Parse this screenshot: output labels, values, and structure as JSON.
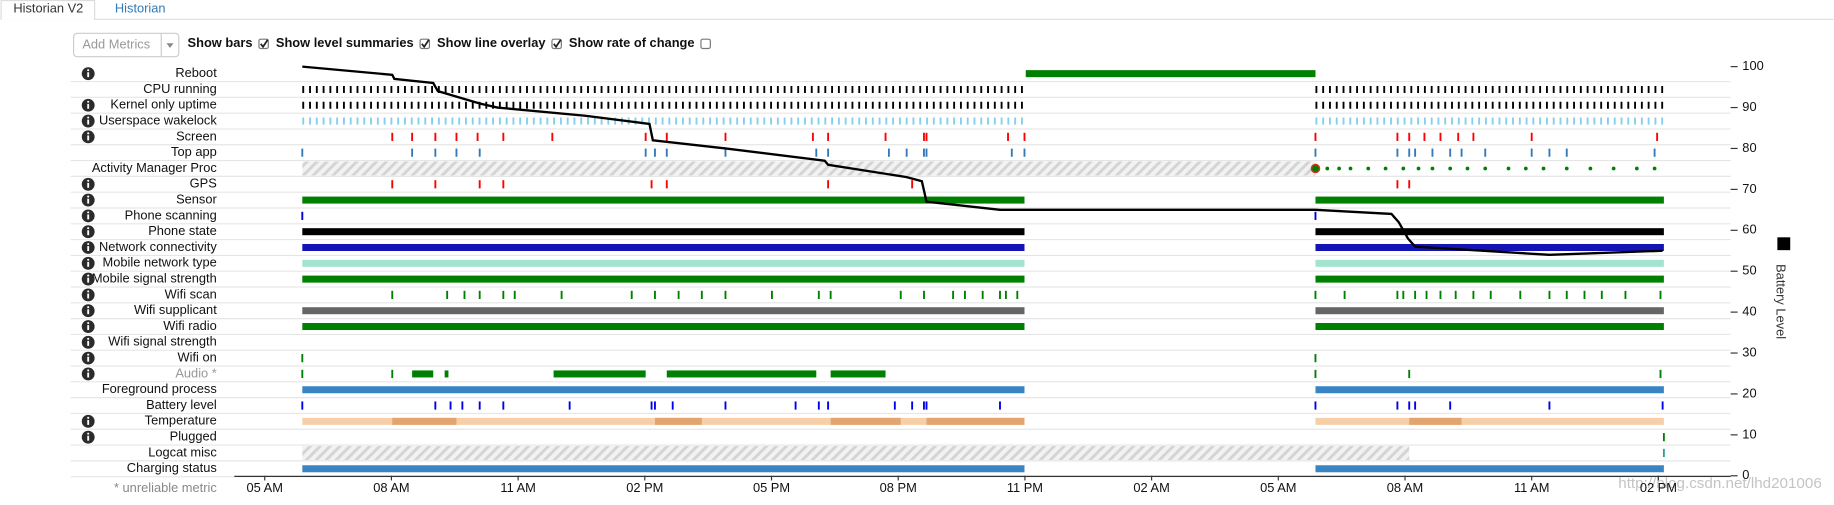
{
  "tabs": [
    {
      "label": "Historian V2",
      "active": true
    },
    {
      "label": "Historian",
      "active": false
    }
  ],
  "controls": {
    "add_metrics": "Add Metrics",
    "checkboxes": [
      {
        "label": "Show bars",
        "checked": true
      },
      {
        "label": "Show level summaries",
        "checked": true
      },
      {
        "label": "Show line overlay",
        "checked": true
      },
      {
        "label": "Show rate of change",
        "checked": false
      }
    ]
  },
  "footnote": "* unreliable metric",
  "watermark": "http://blog.csdn.net/lhd201006",
  "chart_data": {
    "type": "timeline",
    "xlim": [
      4.28,
      39.71
    ],
    "xticks": [
      {
        "value": 5,
        "label": "05 AM"
      },
      {
        "value": 8,
        "label": "08 AM"
      },
      {
        "value": 11,
        "label": "11 AM"
      },
      {
        "value": 14,
        "label": "02 PM"
      },
      {
        "value": 17,
        "label": "05 PM"
      },
      {
        "value": 20,
        "label": "08 PM"
      },
      {
        "value": 23,
        "label": "11 PM"
      },
      {
        "value": 26,
        "label": "02 AM"
      },
      {
        "value": 29,
        "label": "05 AM"
      },
      {
        "value": 32,
        "label": "08 AM"
      },
      {
        "value": 35,
        "label": "11 AM"
      },
      {
        "value": 38,
        "label": "02 PM"
      }
    ],
    "y2lim": [
      0,
      100
    ],
    "y2ticks": [
      0,
      10,
      20,
      30,
      40,
      50,
      60,
      70,
      80,
      90,
      100
    ],
    "y2label": "Battery Level",
    "series": [
      {
        "color": "#000000",
        "axis": "y2",
        "x": [
          5.89,
          8.02,
          8.07,
          8.99,
          9.1,
          10.09,
          10.51,
          12.59,
          14.11,
          14.19,
          15.91,
          18.26,
          18.34,
          20.2,
          20.56,
          20.67,
          22.41,
          29.88,
          31.68,
          31.85,
          32.07,
          32.24,
          35.42,
          38.1
        ],
        "values": [
          100,
          98,
          97,
          96,
          94,
          91,
          90,
          88,
          86,
          82,
          80,
          77,
          76,
          73,
          72,
          67,
          65,
          65,
          64,
          62,
          58,
          56,
          54,
          55
        ]
      }
    ],
    "rows": [
      {
        "name": "Reboot",
        "info": true,
        "color": "#008000",
        "segments": [
          [
            23.02,
            29.88
          ]
        ]
      },
      {
        "name": "CPU running",
        "info": false,
        "color": "#000000",
        "style": "dense",
        "segments": [
          [
            5.89,
            22.99
          ],
          [
            29.88,
            38.13
          ]
        ]
      },
      {
        "name": "Kernel only uptime",
        "info": true,
        "color": "#000000",
        "style": "dense",
        "segments": [
          [
            5.89,
            22.99
          ],
          [
            29.88,
            38.13
          ]
        ]
      },
      {
        "name": "Userspace wakelock",
        "info": true,
        "color": "#87ceeb",
        "style": "dense",
        "segments": [
          [
            5.89,
            22.99
          ],
          [
            29.88,
            38.13
          ]
        ]
      },
      {
        "name": "Screen",
        "info": true,
        "color": "#ff0000",
        "events": [
          8.02,
          8.49,
          9.04,
          9.54,
          10.04,
          10.65,
          11.81,
          14.02,
          14.52,
          15.91,
          17.98,
          18.34,
          19.7,
          20.61,
          20.67,
          22.6,
          22.99,
          29.88,
          31.82,
          32.1,
          32.46,
          32.84,
          33.26,
          33.62,
          35.0,
          37.97
        ]
      },
      {
        "name": "Top app",
        "info": false,
        "color": "#337ab7",
        "events": [
          5.89,
          8.49,
          9.04,
          9.54,
          10.09,
          14.02,
          14.24,
          14.52,
          15.91,
          18.06,
          18.34,
          19.78,
          20.2,
          20.61,
          20.67,
          22.69,
          22.99,
          29.88,
          31.82,
          32.1,
          32.24,
          32.65,
          33.07,
          33.34,
          33.9,
          35.0,
          35.42,
          35.83,
          37.91
        ]
      },
      {
        "name": "Activity Manager Proc",
        "info": false,
        "color": "#008000",
        "style": "dots",
        "hatched": [
          [
            5.89,
            29.88
          ]
        ],
        "events": [
          29.88,
          30.16,
          30.44,
          30.71,
          31.13,
          31.54,
          31.96,
          32.32,
          32.65,
          33.07,
          33.48,
          33.9,
          34.45,
          34.86,
          35.28,
          35.83,
          36.39,
          36.94,
          37.49,
          37.91
        ]
      },
      {
        "name": "GPS",
        "info": true,
        "color": "#ff0000",
        "events": [
          8.02,
          9.04,
          10.09,
          10.65,
          14.16,
          14.52,
          18.34,
          20.33,
          31.82,
          32.1
        ]
      },
      {
        "name": "Sensor",
        "info": true,
        "color": "#008000",
        "segments": [
          [
            5.89,
            22.99
          ],
          [
            29.88,
            38.13
          ]
        ]
      },
      {
        "name": "Phone scanning",
        "info": true,
        "color": "#0000cc",
        "events": [
          5.89,
          29.88
        ]
      },
      {
        "name": "Phone state",
        "info": true,
        "color": "#000000",
        "segments": [
          [
            5.89,
            22.99
          ],
          [
            29.88,
            38.13
          ]
        ]
      },
      {
        "name": "Network connectivity",
        "info": true,
        "color": "#1414b4",
        "segments": [
          [
            5.89,
            22.99
          ],
          [
            29.88,
            38.13
          ]
        ]
      },
      {
        "name": "Mobile network type",
        "info": true,
        "color": "#a3e4d0",
        "segments": [
          [
            5.89,
            22.99
          ],
          [
            29.88,
            38.13
          ]
        ]
      },
      {
        "name": "Mobile signal strength",
        "info": true,
        "color": "#008000",
        "segments": [
          [
            5.89,
            22.99
          ],
          [
            29.88,
            38.13
          ]
        ]
      },
      {
        "name": "Wifi scan",
        "info": true,
        "color": "#008000",
        "events": [
          8.02,
          9.32,
          9.73,
          10.09,
          10.65,
          10.92,
          12.03,
          13.69,
          14.24,
          14.8,
          15.35,
          15.91,
          17.01,
          18.12,
          18.4,
          20.06,
          20.61,
          21.3,
          21.58,
          22.0,
          22.41,
          22.55,
          22.82,
          29.88,
          30.57,
          31.82,
          31.96,
          32.24,
          32.51,
          32.84,
          33.2,
          33.62,
          34.03,
          34.73,
          35.42,
          35.83,
          36.25,
          36.66,
          37.22,
          38.05
        ]
      },
      {
        "name": "Wifi supplicant",
        "info": true,
        "color": "#666666",
        "segments": [
          [
            5.89,
            22.99
          ],
          [
            29.88,
            38.13
          ]
        ]
      },
      {
        "name": "Wifi radio",
        "info": true,
        "color": "#008000",
        "segments": [
          [
            5.89,
            22.99
          ],
          [
            29.88,
            38.13
          ]
        ]
      },
      {
        "name": "Wifi signal strength",
        "info": true,
        "color": "#008000"
      },
      {
        "name": "Wifi on",
        "info": true,
        "color": "#008000",
        "events": [
          5.89,
          29.88
        ]
      },
      {
        "name": "Audio *",
        "info": true,
        "unreliable": true,
        "color": "#008000",
        "events": [
          5.89,
          8.02,
          29.88,
          32.1,
          38.05
        ],
        "segments": [
          [
            8.49,
            8.99
          ],
          [
            9.26,
            9.35
          ],
          [
            11.84,
            14.02
          ],
          [
            14.52,
            18.06
          ],
          [
            18.4,
            19.7
          ]
        ]
      },
      {
        "name": "Foreground process",
        "info": false,
        "color": "#3a84c4",
        "segments": [
          [
            5.89,
            22.99
          ],
          [
            29.88,
            38.13
          ]
        ]
      },
      {
        "name": "Battery level",
        "info": false,
        "color": "#0000ee",
        "events": [
          5.89,
          9.04,
          9.4,
          9.68,
          10.09,
          10.65,
          12.22,
          14.16,
          14.24,
          14.66,
          15.91,
          17.57,
          18.12,
          18.34,
          19.92,
          20.33,
          20.61,
          20.67,
          22.41,
          29.88,
          31.82,
          32.1,
          32.24,
          33.07,
          35.42,
          38.1
        ]
      },
      {
        "name": "Temperature",
        "info": true,
        "color": "#f6cfa8",
        "segments": [
          [
            5.89,
            22.99
          ],
          [
            29.88,
            38.13
          ]
        ],
        "shade_color": "#e3a56f",
        "shade": [
          [
            8.02,
            9.54
          ],
          [
            14.24,
            15.35
          ],
          [
            18.4,
            20.06
          ],
          [
            20.67,
            22.99
          ],
          [
            32.1,
            33.34
          ]
        ]
      },
      {
        "name": "Plugged",
        "info": true,
        "color": "#008000",
        "events": [
          38.13
        ]
      },
      {
        "name": "Logcat misc",
        "info": false,
        "color": "#2aa198",
        "hatched": [
          [
            5.89,
            32.1
          ]
        ],
        "events": [
          38.13
        ]
      },
      {
        "name": "Charging status",
        "info": false,
        "color": "#3a84c4",
        "segments": [
          [
            5.89,
            22.99
          ],
          [
            29.88,
            38.13
          ]
        ]
      }
    ]
  }
}
